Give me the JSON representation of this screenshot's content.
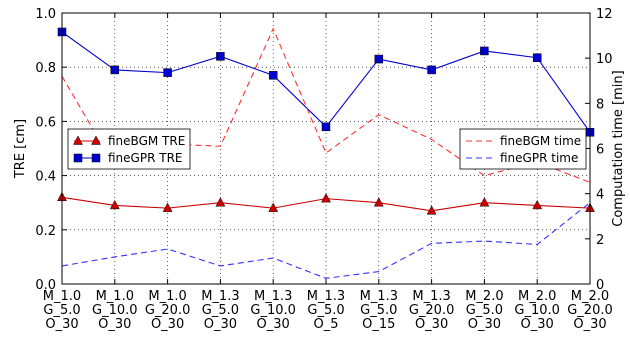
{
  "chart_data": {
    "type": "line",
    "categories": [
      [
        "M_1.0",
        "G_5.0",
        "O_30"
      ],
      [
        "M_1.0",
        "G_10.0",
        "O_30"
      ],
      [
        "M_1.0",
        "G_20.0",
        "O_30"
      ],
      [
        "M_1.3",
        "G_5.0",
        "O_30"
      ],
      [
        "M_1.3",
        "G_10.0",
        "O_30"
      ],
      [
        "M_1.3",
        "G_5.0",
        "O_5"
      ],
      [
        "M_1.3",
        "G_5.0",
        "O_15"
      ],
      [
        "M_1.3",
        "G_20.0",
        "O_30"
      ],
      [
        "M_2.0",
        "G_5.0",
        "O_30"
      ],
      [
        "M_2.0",
        "G_10.0",
        "O_30"
      ],
      [
        "M_2.0",
        "G_20.0",
        "O_30"
      ]
    ],
    "ylabel_left": "TRE [cm]",
    "ylabel_right": "Computation time [min]",
    "ylim_left": [
      0,
      1.0
    ],
    "ylim_right": [
      0,
      12
    ],
    "yticks_left": [
      "0.0",
      "0.2",
      "0.4",
      "0.6",
      "0.8",
      "1.0"
    ],
    "yticks_right": [
      "0",
      "2",
      "4",
      "6",
      "8",
      "10",
      "12"
    ],
    "grid": true,
    "series": [
      {
        "name": "fineBGM TRE",
        "axis": "left",
        "style": "solid",
        "marker": "triangle",
        "color": "#cc0000",
        "values": [
          0.32,
          0.29,
          0.28,
          0.3,
          0.28,
          0.315,
          0.3,
          0.27,
          0.3,
          0.29,
          0.28
        ]
      },
      {
        "name": "fineGPR TRE",
        "axis": "left",
        "style": "solid",
        "marker": "square",
        "color": "#0000cc",
        "values": [
          0.93,
          0.79,
          0.78,
          0.84,
          0.77,
          0.58,
          0.83,
          0.79,
          0.86,
          0.835,
          0.56
        ]
      },
      {
        "name": "fineBGM time",
        "axis": "right",
        "style": "dashed",
        "marker": "none",
        "color": "#ff3333",
        "values": [
          9.2,
          5.2,
          6.2,
          6.1,
          11.3,
          5.8,
          7.5,
          6.4,
          4.8,
          5.4,
          4.5
        ]
      },
      {
        "name": "fineGPR time",
        "axis": "right",
        "style": "dashed",
        "marker": "none",
        "color": "#3333ff",
        "values": [
          0.8,
          1.2,
          1.55,
          0.8,
          1.15,
          0.25,
          0.55,
          1.8,
          1.9,
          1.75,
          3.6
        ]
      }
    ],
    "legends": [
      {
        "placement": "center-left",
        "entries": [
          "fineBGM TRE",
          "fineGPR TRE"
        ]
      },
      {
        "placement": "center-right",
        "entries": [
          "fineBGM time",
          "fineGPR time"
        ]
      }
    ]
  }
}
